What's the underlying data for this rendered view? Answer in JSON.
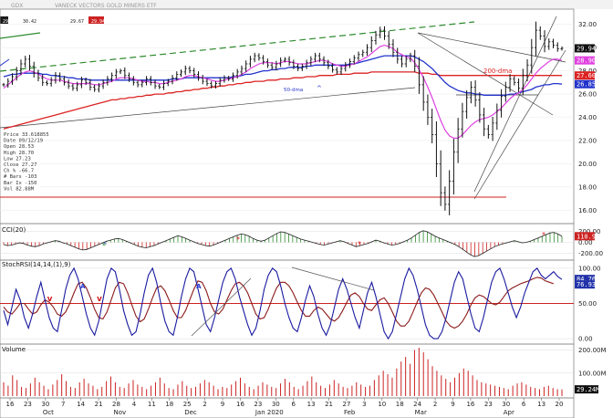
{
  "chart_data": {
    "type": "stock_chart",
    "header": {
      "symbol": "GDX",
      "name": "VANECK VECTORS GOLD MINERS ETF",
      "values": [
        "29.76",
        "30.42",
        "29.67",
        "29.94"
      ]
    },
    "price_ticks": [
      "32.00",
      "30.00",
      "28.00",
      "26.00",
      "24.00",
      "22.00",
      "20.00",
      "18.00",
      "16.00"
    ],
    "price_range": [
      15.0,
      33.0
    ],
    "price_labels": [
      {
        "text": "29.94",
        "color": "#ffffff",
        "bg": "#111111",
        "y": 29.94
      },
      {
        "text": "28.90",
        "color": "#ffffff",
        "bg": "#e040e0",
        "y": 28.9
      },
      {
        "text": "27.60",
        "color": "#ffffff",
        "bg": "#dd2222",
        "y": 27.6
      },
      {
        "text": "26.85",
        "color": "#ffffff",
        "bg": "#2233cc",
        "y": 26.85
      }
    ],
    "annotations": {
      "dma200": "200-dma",
      "dma50": "50-dma"
    },
    "info_box": [
      "Price  33.618855",
      "Date  09/12/19",
      "Open  28.53",
      "High  28.70",
      "Low  27.23",
      "Close  27.27",
      "Ch %  -66.7",
      "# Bars  -103",
      "Bar Ix  -150",
      "Vol  82.88M"
    ],
    "cci": {
      "title": "CCI(20)",
      "ticks": [
        "200.00",
        "0.00",
        "-200.00"
      ],
      "range": [
        -290,
        290
      ],
      "last": {
        "text": "110.91",
        "bg": "#cc2222"
      },
      "values": [
        -40,
        -60,
        -50,
        -30,
        -10,
        -20,
        -50,
        -70,
        -80,
        -60,
        -30,
        -10,
        10,
        30,
        20,
        -10,
        -30,
        -60,
        -90,
        -120,
        -140,
        -130,
        -100,
        -70,
        -40,
        -10,
        20,
        40,
        60,
        70,
        50,
        20,
        -10,
        -40,
        -70,
        -90,
        -100,
        -80,
        -60,
        -30,
        0,
        30,
        60,
        90,
        120,
        100,
        70,
        40,
        10,
        -20,
        -40,
        -60,
        -70,
        -50,
        -20,
        10,
        40,
        70,
        100,
        130,
        150,
        140,
        110,
        70,
        40,
        20,
        40,
        80,
        120,
        160,
        190,
        180,
        150,
        120,
        90,
        60,
        40,
        20,
        0,
        -20,
        -40,
        -50,
        -30,
        -10,
        10,
        30,
        10,
        -20,
        -50,
        -80,
        -60,
        -40,
        -20,
        10,
        40,
        20,
        -10,
        -30,
        -50,
        -40,
        -20,
        10,
        40,
        80,
        130,
        180,
        210,
        190,
        150,
        110,
        80,
        50,
        20,
        -10,
        -40,
        -80,
        -130,
        -180,
        -230,
        -260,
        -240,
        -200,
        -160,
        -120,
        -80,
        -50,
        -30,
        -10,
        10,
        30,
        10,
        -10,
        0,
        20,
        50,
        80,
        110,
        140,
        170,
        180,
        150,
        110
      ]
    },
    "stoch": {
      "title": "StochRSI(14,14,(1),9)",
      "ticks": [
        "100.00",
        "50.00",
        "0.00"
      ],
      "range": [
        -5,
        105
      ],
      "last_k": {
        "text": "84.76",
        "bg": "#2233aa"
      },
      "last_d": {
        "text": "76.93",
        "bg": "#2233aa"
      },
      "k": [
        40,
        20,
        45,
        70,
        55,
        30,
        15,
        35,
        60,
        80,
        55,
        30,
        15,
        10,
        40,
        70,
        90,
        100,
        85,
        60,
        35,
        15,
        5,
        25,
        55,
        85,
        100,
        95,
        70,
        40,
        20,
        5,
        10,
        35,
        65,
        90,
        100,
        80,
        50,
        25,
        10,
        5,
        30,
        60,
        85,
        100,
        95,
        70,
        45,
        20,
        10,
        30,
        55,
        80,
        95,
        100,
        85,
        60,
        40,
        20,
        5,
        15,
        40,
        70,
        90,
        100,
        95,
        75,
        50,
        30,
        15,
        10,
        30,
        55,
        75,
        60,
        35,
        15,
        5,
        20,
        45,
        70,
        85,
        70,
        50,
        30,
        15,
        40,
        65,
        80,
        60,
        35,
        10,
        0,
        10,
        35,
        60,
        85,
        100,
        90,
        70,
        45,
        20,
        5,
        0,
        0,
        10,
        30,
        55,
        80,
        95,
        85,
        60,
        35,
        15,
        10,
        30,
        55,
        80,
        95,
        100,
        85,
        65,
        45,
        30,
        45,
        65,
        80,
        95,
        100,
        90,
        85,
        90,
        95,
        88,
        84
      ],
      "d": [
        45,
        38,
        35,
        42,
        50,
        50,
        42,
        35,
        38,
        48,
        55,
        52,
        45,
        35,
        32,
        38,
        50,
        65,
        78,
        80,
        72,
        58,
        42,
        30,
        28,
        38,
        55,
        72,
        80,
        78,
        65,
        48,
        32,
        24,
        28,
        42,
        58,
        72,
        75,
        68,
        55,
        40,
        30,
        30,
        40,
        55,
        70,
        82,
        80,
        68,
        50,
        38,
        35,
        42,
        55,
        68,
        78,
        80,
        75,
        65,
        50,
        35,
        28,
        30,
        42,
        58,
        72,
        80,
        80,
        75,
        65,
        52,
        40,
        32,
        32,
        40,
        45,
        42,
        35,
        28,
        25,
        30,
        40,
        52,
        62,
        65,
        60,
        50,
        42,
        40,
        48,
        55,
        58,
        50,
        38,
        25,
        18,
        18,
        25,
        38,
        52,
        65,
        72,
        70,
        62,
        50,
        38,
        25,
        18,
        15,
        18,
        25,
        35,
        48,
        58,
        62,
        60,
        55,
        50,
        48,
        52,
        60,
        68,
        72,
        75,
        78,
        80,
        82,
        85,
        87,
        86,
        82,
        80,
        78
      ],
      "marks": [
        {
          "text": "V",
          "color": "#cc0000",
          "idx": 11
        },
        {
          "text": "V",
          "color": "#cc0000",
          "idx": 23
        },
        {
          "text": "A",
          "color": "#2233cc",
          "idx": 19
        },
        {
          "text": "A",
          "color": "#2233cc",
          "idx": 47
        }
      ]
    },
    "volume": {
      "title": "Volume",
      "ticks": [
        "200.00M",
        "100.00M"
      ],
      "range": [
        0,
        210
      ],
      "last": {
        "text": "29.24M",
        "bg": "#111111"
      },
      "values": [
        60,
        45,
        90,
        70,
        40,
        35,
        55,
        80,
        60,
        45,
        30,
        50,
        70,
        95,
        65,
        40,
        35,
        60,
        75,
        55,
        45,
        30,
        40,
        65,
        85,
        60,
        40,
        35,
        55,
        70,
        50,
        40,
        30,
        45,
        60,
        80,
        55,
        35,
        30,
        50,
        65,
        45,
        35,
        40,
        55,
        70,
        60,
        45,
        30,
        40,
        35,
        50,
        65,
        80,
        55,
        40,
        30,
        45,
        60,
        50,
        40,
        35,
        55,
        75,
        60,
        40,
        30,
        45,
        65,
        85,
        60,
        45,
        35,
        50,
        70,
        55,
        40,
        35,
        45,
        60,
        50,
        40,
        45,
        70,
        90,
        110,
        95,
        80,
        120,
        150,
        170,
        140,
        200,
        210,
        190,
        160,
        130,
        110,
        90,
        75,
        60,
        80,
        100,
        120,
        110,
        90,
        70,
        60,
        55,
        50,
        45,
        40,
        35,
        30,
        45,
        55,
        60,
        50,
        40,
        35,
        30,
        40,
        45,
        35,
        30,
        29
      ]
    },
    "x_ticks": [
      {
        "label": "16"
      },
      {
        "label": "23"
      },
      {
        "label": "30"
      },
      {
        "label": "7"
      },
      {
        "label": "14"
      },
      {
        "label": "21"
      },
      {
        "label": "28"
      },
      {
        "label": "4"
      },
      {
        "label": "11"
      },
      {
        "label": "18"
      },
      {
        "label": "25"
      },
      {
        "label": "2"
      },
      {
        "label": "9"
      },
      {
        "label": "16"
      },
      {
        "label": "23"
      },
      {
        "label": "30"
      },
      {
        "label": "6"
      },
      {
        "label": "13"
      },
      {
        "label": "21"
      },
      {
        "label": "27"
      },
      {
        "label": "3"
      },
      {
        "label": "10"
      },
      {
        "label": "18"
      },
      {
        "label": "24"
      },
      {
        "label": "2"
      },
      {
        "label": "9"
      },
      {
        "label": "16"
      },
      {
        "label": "23"
      },
      {
        "label": "30"
      },
      {
        "label": "6"
      },
      {
        "label": "13"
      },
      {
        "label": "20"
      }
    ],
    "month_labels": [
      "Oct",
      "Nov",
      "Dec",
      "Jan 2020",
      "Feb",
      "Mar",
      "Apr"
    ],
    "price_closes": [
      26.8,
      27.1,
      27.5,
      28.0,
      28.6,
      29.0,
      28.4,
      27.8,
      27.4,
      27.0,
      26.9,
      27.2,
      27.6,
      27.3,
      27.0,
      26.7,
      26.5,
      26.8,
      27.2,
      27.0,
      26.6,
      26.4,
      26.7,
      27.0,
      27.3,
      27.6,
      27.9,
      28.0,
      27.6,
      27.3,
      27.0,
      26.8,
      27.0,
      27.3,
      27.0,
      26.7,
      26.6,
      26.9,
      27.1,
      27.4,
      27.7,
      27.9,
      28.2,
      28.0,
      27.7,
      27.4,
      27.1,
      26.9,
      26.7,
      26.9,
      27.2,
      27.4,
      27.3,
      27.6,
      27.9,
      28.2,
      28.6,
      29.0,
      29.3,
      29.1,
      28.8,
      28.5,
      28.3,
      28.6,
      28.9,
      29.0,
      28.7,
      28.4,
      28.2,
      28.4,
      28.7,
      29.0,
      29.3,
      29.0,
      28.7,
      28.4,
      28.1,
      27.9,
      28.2,
      28.5,
      28.8,
      29.1,
      29.4,
      29.6,
      30.0,
      30.6,
      31.1,
      31.5,
      31.0,
      30.3,
      29.6,
      29.0,
      28.6,
      29.0,
      29.3,
      28.4,
      26.8,
      25.3,
      24.0,
      22.5,
      20.0,
      17.5,
      16.5,
      18.5,
      21.0,
      23.0,
      24.5,
      25.7,
      26.6,
      25.5,
      24.2,
      23.0,
      22.5,
      23.5,
      24.6,
      25.8,
      26.6,
      27.3,
      27.0,
      26.5,
      27.6,
      28.5,
      30.0,
      31.5,
      31.0,
      30.1,
      30.5,
      30.2,
      29.9,
      29.94
    ],
    "ma20": [
      26.5,
      26.8,
      27.1,
      27.4,
      27.7,
      27.9,
      28.0,
      27.9,
      27.7,
      27.5,
      27.3,
      27.2,
      27.2,
      27.2,
      27.1,
      27.0,
      26.9,
      26.9,
      26.9,
      26.9,
      26.9,
      26.8,
      26.8,
      26.9,
      27.0,
      27.1,
      27.3,
      27.4,
      27.4,
      27.4,
      27.3,
      27.2,
      27.1,
      27.1,
      27.0,
      27.0,
      26.9,
      26.9,
      27.0,
      27.1,
      27.2,
      27.3,
      27.5,
      27.6,
      27.6,
      27.5,
      27.4,
      27.3,
      27.2,
      27.1,
      27.1,
      27.2,
      27.3,
      27.4,
      27.5,
      27.7,
      27.9,
      28.2,
      28.4,
      28.6,
      28.7,
      28.7,
      28.7,
      28.6,
      28.7,
      28.8,
      28.8,
      28.7,
      28.6,
      28.6,
      28.6,
      28.7,
      28.8,
      28.9,
      28.9,
      28.8,
      28.6,
      28.5,
      28.4,
      28.4,
      28.5,
      28.6,
      28.8,
      29.0,
      29.2,
      29.5,
      29.8,
      30.1,
      30.2,
      30.1,
      29.9,
      29.6,
      29.4,
      29.2,
      29.1,
      28.7,
      28.1,
      27.4,
      26.6,
      25.7,
      24.7,
      23.7,
      22.9,
      22.4,
      22.2,
      22.2,
      22.5,
      22.9,
      23.3,
      23.6,
      23.8,
      23.9,
      24.0,
      24.2,
      24.5,
      24.8,
      25.2,
      25.6,
      25.9,
      26.1,
      26.4,
      26.8,
      27.3,
      27.8,
      28.2,
      28.5,
      28.8,
      29.0,
      29.0,
      28.9
    ],
    "ma50": [
      27.5,
      27.6,
      27.7,
      27.7,
      27.8,
      27.8,
      27.8,
      27.8,
      27.8,
      27.7,
      27.7,
      27.6,
      27.6,
      27.5,
      27.5,
      27.4,
      27.4,
      27.3,
      27.3,
      27.3,
      27.2,
      27.2,
      27.2,
      27.2,
      27.2,
      27.2,
      27.2,
      27.2,
      27.2,
      27.2,
      27.2,
      27.2,
      27.2,
      27.2,
      27.2,
      27.2,
      27.2,
      27.2,
      27.2,
      27.3,
      27.3,
      27.3,
      27.4,
      27.4,
      27.4,
      27.4,
      27.4,
      27.4,
      27.4,
      27.4,
      27.4,
      27.4,
      27.4,
      27.5,
      27.5,
      27.6,
      27.7,
      27.7,
      27.8,
      27.9,
      28.0,
      28.0,
      28.1,
      28.1,
      28.2,
      28.2,
      28.3,
      28.3,
      28.3,
      28.3,
      28.4,
      28.4,
      28.5,
      28.5,
      28.5,
      28.5,
      28.5,
      28.5,
      28.5,
      28.5,
      28.6,
      28.6,
      28.7,
      28.8,
      28.9,
      29.0,
      29.1,
      29.2,
      29.3,
      29.3,
      29.3,
      29.3,
      29.3,
      29.3,
      29.3,
      29.2,
      29.0,
      28.8,
      28.5,
      28.2,
      27.8,
      27.4,
      27.0,
      26.7,
      26.5,
      26.3,
      26.2,
      26.1,
      26.1,
      26.0,
      26.0,
      25.9,
      25.9,
      25.9,
      25.9,
      25.9,
      25.9,
      26.0,
      26.0,
      26.1,
      26.2,
      26.3,
      26.4,
      26.6,
      26.7,
      26.8,
      26.8,
      26.9,
      26.9,
      26.85
    ],
    "ma200": [
      23.0,
      23.1,
      23.2,
      23.3,
      23.4,
      23.5,
      23.6,
      23.7,
      23.8,
      23.9,
      24.0,
      24.1,
      24.2,
      24.3,
      24.4,
      24.5,
      24.6,
      24.7,
      24.8,
      24.9,
      25.0,
      25.1,
      25.2,
      25.3,
      25.4,
      25.5,
      25.5,
      25.6,
      25.6,
      25.7,
      25.7,
      25.8,
      25.8,
      25.9,
      25.9,
      26.0,
      26.0,
      26.0,
      26.1,
      26.1,
      26.2,
      26.2,
      26.3,
      26.3,
      26.4,
      26.4,
      26.5,
      26.5,
      26.6,
      26.6,
      26.7,
      26.7,
      26.8,
      26.8,
      26.9,
      26.9,
      27.0,
      27.0,
      27.1,
      27.1,
      27.1,
      27.2,
      27.2,
      27.2,
      27.3,
      27.3,
      27.3,
      27.4,
      27.4,
      27.4,
      27.5,
      27.5,
      27.5,
      27.6,
      27.6,
      27.6,
      27.6,
      27.7,
      27.7,
      27.7,
      27.7,
      27.8,
      27.8,
      27.8,
      27.8,
      27.9,
      27.9,
      27.9,
      27.9,
      27.9,
      27.9,
      27.9,
      27.9,
      27.9,
      27.9,
      27.9,
      27.8,
      27.8,
      27.8,
      27.7,
      27.7,
      27.6,
      27.6,
      27.6,
      27.6,
      27.6,
      27.6,
      27.6,
      27.6,
      27.6,
      27.6,
      27.6,
      27.6,
      27.6,
      27.6,
      27.6,
      27.6,
      27.6,
      27.6,
      27.6,
      27.6,
      27.6,
      27.6,
      27.6,
      27.6,
      27.6,
      27.6,
      27.6,
      27.6,
      27.6
    ]
  }
}
